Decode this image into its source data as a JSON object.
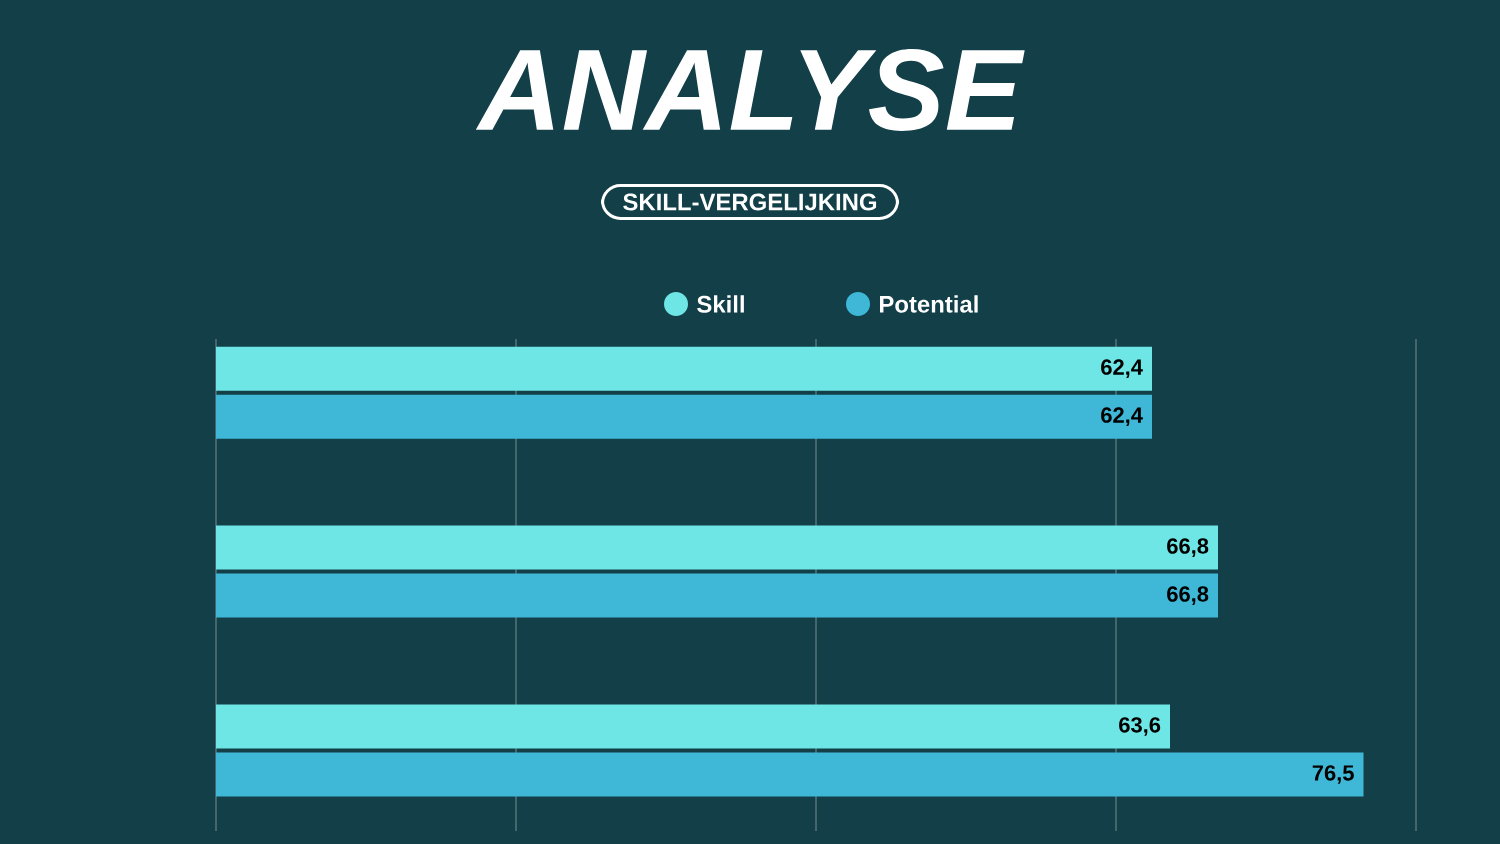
{
  "chart_data": {
    "type": "bar",
    "orientation": "horizontal",
    "title": "ANALYSE",
    "subtitle": "SKILL-VERGELIJKING",
    "categories": [
      null,
      null,
      null
    ],
    "series": [
      {
        "name": "Skill",
        "color": "#6ee6e6",
        "values": [
          62.4,
          66.8,
          63.6
        ],
        "value_labels": [
          "62,4",
          "66,8",
          "63,6"
        ]
      },
      {
        "name": "Potential",
        "color": "#3fb8d8",
        "values": [
          62.4,
          66.8,
          76.5
        ],
        "value_labels": [
          "62,4",
          "66,8",
          "76,5"
        ]
      }
    ],
    "xlim": [
      0,
      80
    ],
    "xticks": [
      {
        "value": 0,
        "label": null
      },
      {
        "value": 20,
        "label": null
      },
      {
        "value": 40,
        "label": null
      },
      {
        "value": 60,
        "label": null
      },
      {
        "value": 80,
        "label": null
      }
    ],
    "grid": "x",
    "legend": "top"
  }
}
